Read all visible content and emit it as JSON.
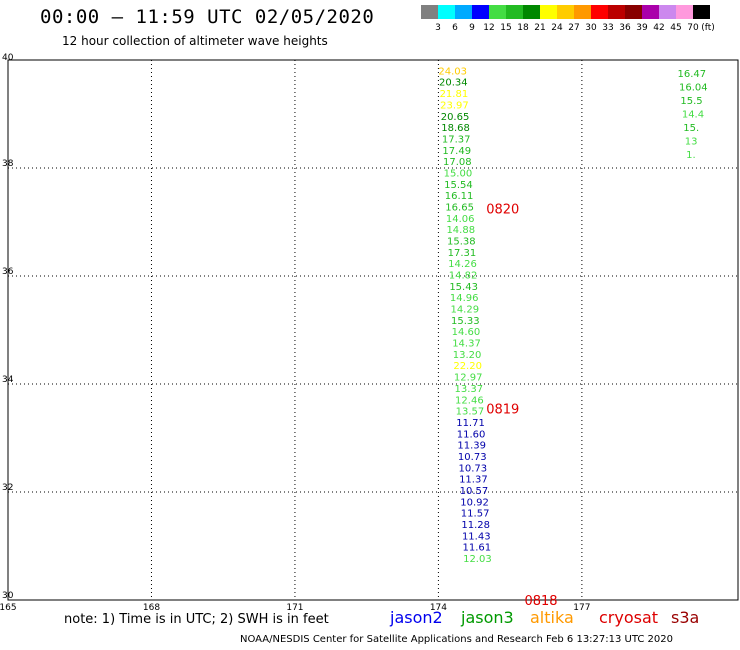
{
  "header": {
    "title": "00:00 – 11:59 UTC 02/05/2020",
    "subtitle": "12 hour collection of altimeter wave heights"
  },
  "colorbar": {
    "labels": [
      "3",
      "6",
      "9",
      "12",
      "15",
      "18",
      "21",
      "24",
      "27",
      "30",
      "33",
      "36",
      "39",
      "42",
      "45",
      "70"
    ],
    "unit": "(ft)",
    "colors": [
      "#808080",
      "#00ffff",
      "#00aaff",
      "#0000ff",
      "#44dd44",
      "#22bb22",
      "#008800",
      "#ffff00",
      "#ffcc00",
      "#ff9900",
      "#ff0000",
      "#bb0000",
      "#880000",
      "#aa00aa",
      "#cc88ee",
      "#ff99dd",
      "#000000"
    ]
  },
  "axes": {
    "x_ticks": [
      "165",
      "168",
      "171",
      "174",
      "177"
    ],
    "y_ticks": [
      "40",
      "38",
      "36",
      "34",
      "32",
      "30"
    ]
  },
  "tracks": [
    {
      "lon": 174.0,
      "lat_start": 39.9,
      "lat_step": -0.21,
      "points": [
        {
          "v": "24.03",
          "c": "#ffcc00"
        },
        {
          "v": "20.34",
          "c": "#008800"
        },
        {
          "v": "21.81",
          "c": "#ffff00"
        },
        {
          "v": "23.97",
          "c": "#ffff00"
        },
        {
          "v": "20.65",
          "c": "#008800"
        },
        {
          "v": "18.68",
          "c": "#008800"
        },
        {
          "v": "17.37",
          "c": "#22bb22"
        },
        {
          "v": "17.49",
          "c": "#22bb22"
        },
        {
          "v": "17.08",
          "c": "#22bb22"
        },
        {
          "v": "15.00",
          "c": "#44dd44"
        },
        {
          "v": "15.54",
          "c": "#22bb22"
        },
        {
          "v": "16.11",
          "c": "#22bb22"
        },
        {
          "v": "16.65",
          "c": "#22bb22"
        },
        {
          "v": "14.06",
          "c": "#44dd44"
        },
        {
          "v": "14.88",
          "c": "#44dd44"
        },
        {
          "v": "15.38",
          "c": "#22bb22"
        },
        {
          "v": "17.31",
          "c": "#22bb22"
        },
        {
          "v": "14.26",
          "c": "#44dd44"
        },
        {
          "v": "14.82",
          "c": "#44dd44"
        },
        {
          "v": "15.43",
          "c": "#22bb22"
        },
        {
          "v": "14.96",
          "c": "#44dd44"
        },
        {
          "v": "14.29",
          "c": "#44dd44"
        },
        {
          "v": "15.33",
          "c": "#22bb22"
        },
        {
          "v": "14.60",
          "c": "#44dd44"
        },
        {
          "v": "14.37",
          "c": "#44dd44"
        },
        {
          "v": "13.20",
          "c": "#44dd44"
        },
        {
          "v": "22.20",
          "c": "#ffff00"
        },
        {
          "v": "12.97",
          "c": "#44dd44"
        },
        {
          "v": "13.37",
          "c": "#44dd44"
        },
        {
          "v": "12.46",
          "c": "#44dd44"
        },
        {
          "v": "13.57",
          "c": "#44dd44"
        },
        {
          "v": "11.71",
          "c": "#0000aa"
        },
        {
          "v": "11.60",
          "c": "#0000aa"
        },
        {
          "v": "11.39",
          "c": "#0000aa"
        },
        {
          "v": "10.73",
          "c": "#0000aa"
        },
        {
          "v": "10.73",
          "c": "#0000aa"
        },
        {
          "v": "11.37",
          "c": "#0000aa"
        },
        {
          "v": "10.57",
          "c": "#0000aa"
        },
        {
          "v": "10.92",
          "c": "#0000aa"
        },
        {
          "v": "11.57",
          "c": "#0000aa"
        },
        {
          "v": "11.28",
          "c": "#0000aa"
        },
        {
          "v": "11.43",
          "c": "#0000aa"
        },
        {
          "v": "11.61",
          "c": "#0000aa"
        },
        {
          "v": "12.03",
          "c": "#44dd44"
        }
      ]
    },
    {
      "lon": 179.0,
      "lat_start": 39.85,
      "lat_step": -0.25,
      "points": [
        {
          "v": "16.47",
          "c": "#22bb22"
        },
        {
          "v": "16.04",
          "c": "#22bb22"
        },
        {
          "v": "15.5",
          "c": "#22bb22"
        },
        {
          "v": "14.4",
          "c": "#44dd44"
        },
        {
          "v": "15.",
          "c": "#22bb22"
        },
        {
          "v": "13",
          "c": "#44dd44"
        },
        {
          "v": "1.",
          "c": "#44dd44"
        }
      ]
    }
  ],
  "time_labels": [
    {
      "text": "0820",
      "lat": 37.25,
      "lon": 175.0
    },
    {
      "text": "0819",
      "lat": 33.55,
      "lon": 175.0
    },
    {
      "text": "0818",
      "lat": 30.0,
      "lon": 175.8
    }
  ],
  "note": "note: 1) Time is in UTC; 2) SWH is in feet",
  "legend": [
    {
      "name": "jason2",
      "color": "#0000ee"
    },
    {
      "name": "jason3",
      "color": "#009900"
    },
    {
      "name": "altika",
      "color": "#ff9900"
    },
    {
      "name": "cryosat",
      "color": "#dd0000"
    },
    {
      "name": "s3a",
      "color": "#990000"
    }
  ],
  "footer": "NOAA/NESDIS Center for Satellite Applications and Research   Feb  6 13:27:13 UTC 2020"
}
